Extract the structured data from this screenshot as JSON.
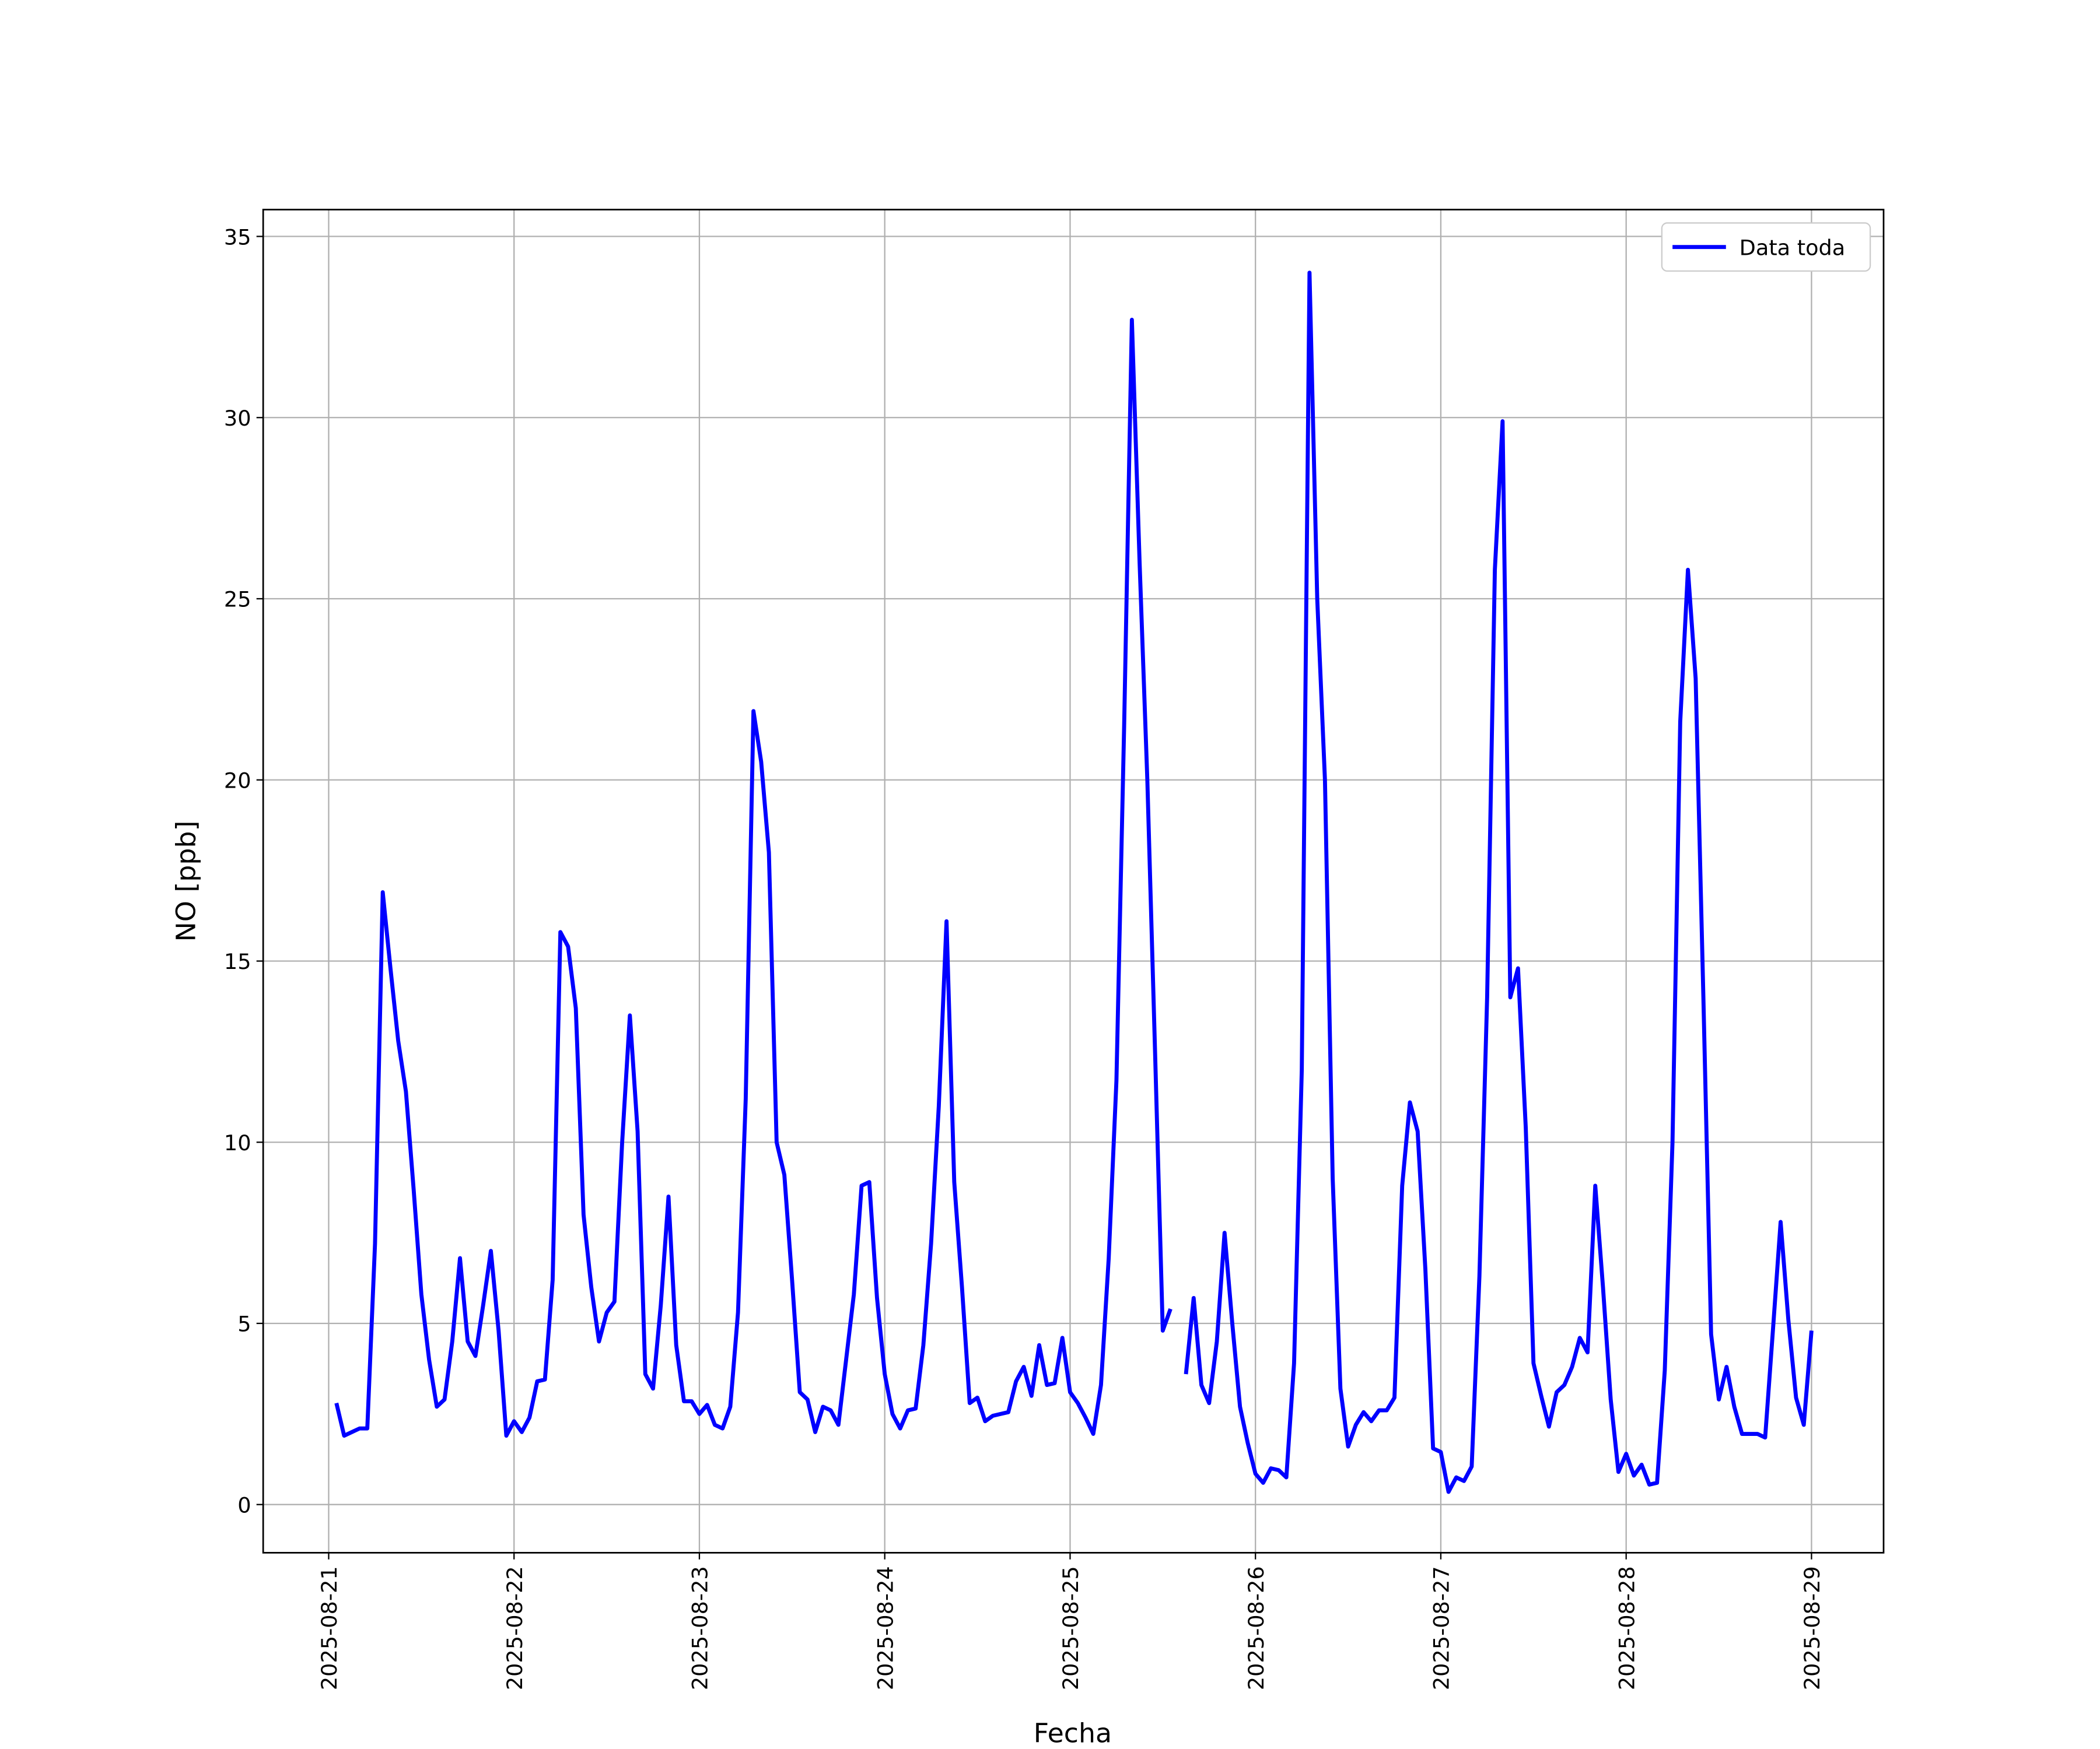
{
  "chart_data": {
    "type": "line",
    "xlabel": "Fecha",
    "ylabel": "NO [ppb]",
    "x": [
      "2025-08-21 01:00",
      "2025-08-21 02:00",
      "2025-08-21 03:00",
      "2025-08-21 04:00",
      "2025-08-21 05:00",
      "2025-08-21 06:00",
      "2025-08-21 07:00",
      "2025-08-21 08:00",
      "2025-08-21 09:00",
      "2025-08-21 10:00",
      "2025-08-21 11:00",
      "2025-08-21 12:00",
      "2025-08-21 13:00",
      "2025-08-21 14:00",
      "2025-08-21 15:00",
      "2025-08-21 16:00",
      "2025-08-21 17:00",
      "2025-08-21 18:00",
      "2025-08-21 19:00",
      "2025-08-21 20:00",
      "2025-08-21 21:00",
      "2025-08-21 22:00",
      "2025-08-21 23:00",
      "2025-08-22 00:00",
      "2025-08-22 01:00",
      "2025-08-22 02:00",
      "2025-08-22 03:00",
      "2025-08-22 04:00",
      "2025-08-22 05:00",
      "2025-08-22 06:00",
      "2025-08-22 07:00",
      "2025-08-22 08:00",
      "2025-08-22 09:00",
      "2025-08-22 10:00",
      "2025-08-22 11:00",
      "2025-08-22 12:00",
      "2025-08-22 13:00",
      "2025-08-22 14:00",
      "2025-08-22 15:00",
      "2025-08-22 16:00",
      "2025-08-22 17:00",
      "2025-08-22 18:00",
      "2025-08-22 19:00",
      "2025-08-22 20:00",
      "2025-08-22 21:00",
      "2025-08-22 22:00",
      "2025-08-22 23:00",
      "2025-08-23 00:00",
      "2025-08-23 01:00",
      "2025-08-23 02:00",
      "2025-08-23 03:00",
      "2025-08-23 04:00",
      "2025-08-23 05:00",
      "2025-08-23 06:00",
      "2025-08-23 07:00",
      "2025-08-23 08:00",
      "2025-08-23 09:00",
      "2025-08-23 10:00",
      "2025-08-23 11:00",
      "2025-08-23 12:00",
      "2025-08-23 13:00",
      "2025-08-23 14:00",
      "2025-08-23 15:00",
      "2025-08-23 16:00",
      "2025-08-23 17:00",
      "2025-08-23 18:00",
      "2025-08-23 19:00",
      "2025-08-23 20:00",
      "2025-08-23 21:00",
      "2025-08-23 22:00",
      "2025-08-23 23:00",
      "2025-08-24 00:00",
      "2025-08-24 01:00",
      "2025-08-24 02:00",
      "2025-08-24 03:00",
      "2025-08-24 04:00",
      "2025-08-24 05:00",
      "2025-08-24 06:00",
      "2025-08-24 07:00",
      "2025-08-24 08:00",
      "2025-08-24 09:00",
      "2025-08-24 10:00",
      "2025-08-24 11:00",
      "2025-08-24 12:00",
      "2025-08-24 13:00",
      "2025-08-24 14:00",
      "2025-08-24 15:00",
      "2025-08-24 16:00",
      "2025-08-24 17:00",
      "2025-08-24 18:00",
      "2025-08-24 19:00",
      "2025-08-24 20:00",
      "2025-08-24 21:00",
      "2025-08-24 22:00",
      "2025-08-24 23:00",
      "2025-08-25 00:00",
      "2025-08-25 01:00",
      "2025-08-25 02:00",
      "2025-08-25 03:00",
      "2025-08-25 04:00",
      "2025-08-25 05:00",
      "2025-08-25 06:00",
      "2025-08-25 07:00",
      "2025-08-25 08:00",
      "2025-08-25 09:00",
      "2025-08-25 10:00",
      "2025-08-25 11:00",
      "2025-08-25 12:00",
      "2025-08-25 13:00",
      "2025-08-25 14:00",
      "2025-08-25 15:00",
      "2025-08-25 16:00",
      "2025-08-25 17:00",
      "2025-08-25 18:00",
      "2025-08-25 19:00",
      "2025-08-25 20:00",
      "2025-08-25 21:00",
      "2025-08-25 22:00",
      "2025-08-25 23:00",
      "2025-08-26 00:00",
      "2025-08-26 01:00",
      "2025-08-26 02:00",
      "2025-08-26 03:00",
      "2025-08-26 04:00",
      "2025-08-26 05:00",
      "2025-08-26 06:00",
      "2025-08-26 07:00",
      "2025-08-26 08:00",
      "2025-08-26 09:00",
      "2025-08-26 10:00",
      "2025-08-26 11:00",
      "2025-08-26 12:00",
      "2025-08-26 13:00",
      "2025-08-26 14:00",
      "2025-08-26 15:00",
      "2025-08-26 16:00",
      "2025-08-26 17:00",
      "2025-08-26 18:00",
      "2025-08-26 19:00",
      "2025-08-26 20:00",
      "2025-08-26 21:00",
      "2025-08-26 22:00",
      "2025-08-26 23:00",
      "2025-08-27 00:00",
      "2025-08-27 01:00",
      "2025-08-27 02:00",
      "2025-08-27 03:00",
      "2025-08-27 04:00",
      "2025-08-27 05:00",
      "2025-08-27 06:00",
      "2025-08-27 07:00",
      "2025-08-27 08:00",
      "2025-08-27 09:00",
      "2025-08-27 10:00",
      "2025-08-27 11:00",
      "2025-08-27 12:00",
      "2025-08-27 13:00",
      "2025-08-27 14:00",
      "2025-08-27 15:00",
      "2025-08-27 16:00",
      "2025-08-27 17:00",
      "2025-08-27 18:00",
      "2025-08-27 19:00",
      "2025-08-27 20:00",
      "2025-08-27 21:00",
      "2025-08-27 22:00",
      "2025-08-27 23:00",
      "2025-08-28 00:00",
      "2025-08-28 01:00",
      "2025-08-28 02:00",
      "2025-08-28 03:00",
      "2025-08-28 04:00",
      "2025-08-28 05:00",
      "2025-08-28 06:00",
      "2025-08-28 07:00",
      "2025-08-28 08:00",
      "2025-08-28 09:00",
      "2025-08-28 10:00",
      "2025-08-28 11:00",
      "2025-08-28 12:00",
      "2025-08-28 13:00",
      "2025-08-28 14:00",
      "2025-08-28 15:00",
      "2025-08-28 16:00",
      "2025-08-28 17:00",
      "2025-08-28 18:00",
      "2025-08-28 19:00",
      "2025-08-28 20:00",
      "2025-08-28 21:00",
      "2025-08-28 22:00",
      "2025-08-28 23:00",
      "2025-08-29 00:00"
    ],
    "series": [
      {
        "name": "Data toda",
        "color": "#0000ff",
        "values": [
          2.8,
          1.9,
          2.0,
          2.1,
          2.1,
          7.2,
          16.9,
          14.8,
          12.8,
          11.4,
          8.7,
          5.8,
          4.0,
          2.7,
          2.9,
          4.5,
          6.8,
          4.5,
          4.1,
          5.5,
          7.0,
          4.8,
          1.9,
          2.3,
          2.0,
          2.4,
          3.4,
          3.45,
          6.2,
          15.8,
          15.4,
          13.7,
          8.0,
          6.0,
          4.5,
          5.3,
          5.6,
          10.0,
          13.5,
          10.3,
          3.6,
          3.2,
          5.5,
          8.5,
          4.4,
          2.85,
          2.85,
          2.5,
          2.75,
          2.2,
          2.1,
          2.7,
          5.3,
          11.2,
          21.9,
          20.5,
          18.0,
          10.0,
          9.1,
          6.2,
          3.1,
          2.9,
          2.0,
          2.7,
          2.6,
          2.2,
          4.0,
          5.8,
          8.8,
          8.9,
          5.7,
          3.6,
          2.5,
          2.1,
          2.6,
          2.65,
          4.4,
          7.2,
          11.0,
          16.1,
          8.9,
          6.0,
          2.8,
          2.95,
          2.3,
          2.45,
          2.5,
          2.55,
          3.4,
          3.8,
          3.0,
          4.4,
          3.3,
          3.35,
          4.6,
          3.1,
          2.8,
          2.4,
          1.95,
          3.3,
          6.8,
          11.7,
          21.5,
          32.7,
          26.0,
          20.0,
          12.5,
          4.8,
          5.4,
          null,
          3.6,
          5.7,
          3.3,
          2.8,
          4.5,
          7.5,
          5.0,
          2.7,
          1.7,
          0.85,
          0.6,
          1.0,
          0.95,
          0.75,
          3.9,
          12.0,
          34.0,
          25.0,
          20.0,
          9.0,
          3.2,
          1.6,
          2.2,
          2.55,
          2.3,
          2.6,
          2.6,
          2.95,
          8.8,
          11.1,
          10.3,
          6.5,
          1.55,
          1.45,
          0.35,
          0.75,
          0.65,
          1.05,
          6.3,
          14.0,
          25.8,
          29.9,
          14.0,
          14.8,
          10.4,
          3.9,
          3.0,
          2.15,
          3.1,
          3.3,
          3.8,
          4.6,
          4.2,
          8.8,
          6.0,
          2.9,
          0.9,
          1.4,
          0.8,
          1.1,
          0.55,
          0.6,
          3.7,
          10.0,
          21.6,
          25.8,
          22.8,
          14.0,
          4.7,
          2.9,
          3.8,
          2.7,
          1.95,
          1.95,
          1.95,
          1.85,
          4.8,
          7.8,
          5.1,
          2.95,
          2.2,
          4.8
        ]
      }
    ],
    "xlim": [
      "2025-08-20 15:31",
      "2025-08-29 09:20"
    ],
    "xticks": [
      "2025-08-21",
      "2025-08-22",
      "2025-08-23",
      "2025-08-24",
      "2025-08-25",
      "2025-08-26",
      "2025-08-27",
      "2025-08-28",
      "2025-08-29"
    ],
    "ylim": [
      -1.33,
      35.74
    ],
    "yticks": [
      0,
      5,
      10,
      15,
      20,
      25,
      30,
      35
    ],
    "grid": true,
    "legend": "upper right"
  }
}
